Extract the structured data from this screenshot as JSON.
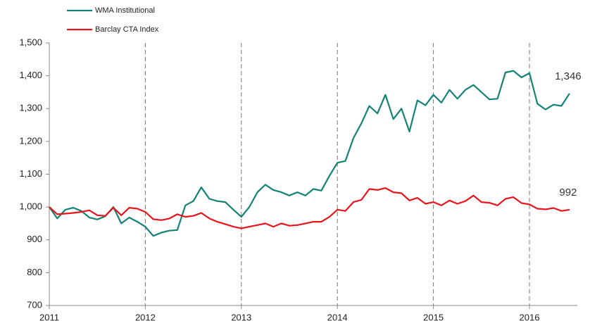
{
  "chart_data": {
    "type": "line",
    "x": [
      2011,
      2011.083,
      2011.167,
      2011.25,
      2011.333,
      2011.417,
      2011.5,
      2011.583,
      2011.667,
      2011.75,
      2011.833,
      2011.917,
      2012,
      2012.083,
      2012.167,
      2012.25,
      2012.333,
      2012.417,
      2012.5,
      2012.583,
      2012.667,
      2012.75,
      2012.833,
      2012.917,
      2013,
      2013.083,
      2013.167,
      2013.25,
      2013.333,
      2013.417,
      2013.5,
      2013.583,
      2013.667,
      2013.75,
      2013.833,
      2013.917,
      2014,
      2014.083,
      2014.167,
      2014.25,
      2014.333,
      2014.417,
      2014.5,
      2014.583,
      2014.667,
      2014.75,
      2014.833,
      2014.917,
      2015,
      2015.083,
      2015.167,
      2015.25,
      2015.333,
      2015.417,
      2015.5,
      2015.583,
      2015.667,
      2015.75,
      2015.833,
      2015.917,
      2016,
      2016.083,
      2016.167,
      2016.25,
      2016.333,
      2016.417
    ],
    "series": [
      {
        "name": "WMA Institutional",
        "color": "#148275",
        "values": [
          1000,
          965,
          992,
          998,
          988,
          968,
          962,
          972,
          1000,
          950,
          968,
          955,
          940,
          912,
          922,
          928,
          930,
          1005,
          1018,
          1060,
          1025,
          1018,
          1015,
          992,
          970,
          1000,
          1045,
          1068,
          1052,
          1045,
          1035,
          1045,
          1035,
          1055,
          1050,
          1095,
          1135,
          1140,
          1210,
          1255,
          1308,
          1285,
          1342,
          1268,
          1300,
          1230,
          1325,
          1310,
          1342,
          1318,
          1357,
          1330,
          1357,
          1372,
          1350,
          1328,
          1330,
          1410,
          1415,
          1395,
          1408,
          1315,
          1297,
          1312,
          1308,
          1346
        ],
        "value_labels": [
          null,
          null,
          null,
          null,
          null,
          null,
          null,
          null,
          null,
          null,
          null,
          null,
          null,
          null,
          null,
          null,
          null,
          null,
          null,
          null,
          null,
          null,
          null,
          null,
          null,
          null,
          null,
          null,
          null,
          null,
          null,
          null,
          null,
          null,
          null,
          null,
          null,
          null,
          null,
          null,
          null,
          null,
          null,
          null,
          null,
          null,
          null,
          null,
          null,
          null,
          null,
          null,
          null,
          null,
          null,
          null,
          null,
          null,
          null,
          null,
          null,
          null,
          null,
          null,
          null,
          "1,346"
        ]
      },
      {
        "name": "Barclay CTA Index",
        "color": "#e8141c",
        "values": [
          1000,
          978,
          980,
          982,
          985,
          990,
          975,
          973,
          998,
          975,
          998,
          995,
          985,
          963,
          960,
          965,
          978,
          970,
          973,
          982,
          965,
          955,
          948,
          940,
          935,
          940,
          945,
          950,
          940,
          950,
          943,
          945,
          950,
          955,
          955,
          970,
          992,
          988,
          1015,
          1022,
          1055,
          1052,
          1058,
          1045,
          1042,
          1020,
          1028,
          1010,
          1015,
          1005,
          1020,
          1010,
          1018,
          1035,
          1015,
          1013,
          1005,
          1025,
          1030,
          1012,
          1008,
          995,
          993,
          997,
          988,
          992
        ],
        "value_labels": [
          null,
          null,
          null,
          null,
          null,
          null,
          null,
          null,
          null,
          null,
          null,
          null,
          null,
          null,
          null,
          null,
          null,
          null,
          null,
          null,
          null,
          null,
          null,
          null,
          null,
          null,
          null,
          null,
          null,
          null,
          null,
          null,
          null,
          null,
          null,
          null,
          null,
          null,
          null,
          null,
          null,
          null,
          null,
          null,
          null,
          null,
          null,
          null,
          null,
          null,
          null,
          null,
          null,
          null,
          null,
          null,
          null,
          null,
          null,
          null,
          null,
          null,
          null,
          null,
          null,
          "992"
        ]
      }
    ],
    "xlim": [
      2011,
      2016.5
    ],
    "xticks": [
      2011,
      2012,
      2013,
      2014,
      2015,
      2016
    ],
    "ylim": [
      700,
      1500
    ],
    "yticks": [
      700,
      800,
      900,
      {
        "value": 1000,
        "label": "1,000"
      },
      {
        "value": 1100,
        "label": "1,100"
      },
      {
        "value": 1200,
        "label": "1,200"
      },
      {
        "value": 1300,
        "label": "1,300"
      },
      {
        "value": 1400,
        "label": "1,400"
      },
      {
        "value": 1500,
        "label": "1,500"
      }
    ],
    "grid_x": true,
    "legend": "top-left"
  }
}
